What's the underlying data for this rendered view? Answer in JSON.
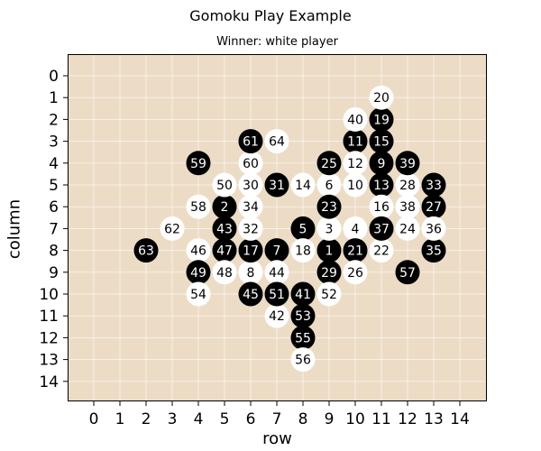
{
  "title": "Gomoku Play Example",
  "subtitle": "Winner: white player",
  "xlabel": "row",
  "ylabel": "column",
  "colors": {
    "board": "#ecdcc6",
    "grid": "#ffffff",
    "black": "#000000",
    "white": "#ffffff"
  },
  "board_size": 15,
  "x_ticks": [
    "0",
    "1",
    "2",
    "3",
    "4",
    "5",
    "6",
    "7",
    "8",
    "9",
    "10",
    "11",
    "12",
    "13",
    "14"
  ],
  "y_ticks": [
    "0",
    "1",
    "2",
    "3",
    "4",
    "5",
    "6",
    "7",
    "8",
    "9",
    "10",
    "11",
    "12",
    "13",
    "14"
  ],
  "moves": [
    {
      "n": 1,
      "color": "black",
      "row": 9,
      "col": 8
    },
    {
      "n": 2,
      "color": "black",
      "row": 5,
      "col": 6
    },
    {
      "n": 3,
      "color": "white",
      "row": 9,
      "col": 7
    },
    {
      "n": 4,
      "color": "white",
      "row": 10,
      "col": 7
    },
    {
      "n": 5,
      "color": "black",
      "row": 8,
      "col": 7
    },
    {
      "n": 6,
      "color": "white",
      "row": 9,
      "col": 5
    },
    {
      "n": 7,
      "color": "black",
      "row": 7,
      "col": 8
    },
    {
      "n": 8,
      "color": "white",
      "row": 6,
      "col": 9
    },
    {
      "n": 9,
      "color": "black",
      "row": 11,
      "col": 4
    },
    {
      "n": 10,
      "color": "white",
      "row": 10,
      "col": 5
    },
    {
      "n": 11,
      "color": "black",
      "row": 10,
      "col": 3
    },
    {
      "n": 12,
      "color": "white",
      "row": 10,
      "col": 4
    },
    {
      "n": 13,
      "color": "black",
      "row": 11,
      "col": 5
    },
    {
      "n": 14,
      "color": "white",
      "row": 8,
      "col": 5
    },
    {
      "n": 15,
      "color": "black",
      "row": 11,
      "col": 3
    },
    {
      "n": 16,
      "color": "white",
      "row": 11,
      "col": 6
    },
    {
      "n": 17,
      "color": "black",
      "row": 6,
      "col": 8
    },
    {
      "n": 18,
      "color": "white",
      "row": 8,
      "col": 8
    },
    {
      "n": 19,
      "color": "black",
      "row": 11,
      "col": 2
    },
    {
      "n": 20,
      "color": "white",
      "row": 11,
      "col": 1
    },
    {
      "n": 21,
      "color": "black",
      "row": 10,
      "col": 8
    },
    {
      "n": 22,
      "color": "white",
      "row": 11,
      "col": 8
    },
    {
      "n": 23,
      "color": "black",
      "row": 9,
      "col": 6
    },
    {
      "n": 24,
      "color": "white",
      "row": 12,
      "col": 7
    },
    {
      "n": 25,
      "color": "black",
      "row": 9,
      "col": 4
    },
    {
      "n": 26,
      "color": "white",
      "row": 10,
      "col": 9
    },
    {
      "n": 27,
      "color": "black",
      "row": 13,
      "col": 6
    },
    {
      "n": 28,
      "color": "white",
      "row": 12,
      "col": 5
    },
    {
      "n": 29,
      "color": "black",
      "row": 9,
      "col": 9
    },
    {
      "n": 30,
      "color": "white",
      "row": 6,
      "col": 5
    },
    {
      "n": 31,
      "color": "black",
      "row": 7,
      "col": 5
    },
    {
      "n": 32,
      "color": "white",
      "row": 6,
      "col": 7
    },
    {
      "n": 33,
      "color": "black",
      "row": 13,
      "col": 5
    },
    {
      "n": 34,
      "color": "white",
      "row": 6,
      "col": 6
    },
    {
      "n": 35,
      "color": "black",
      "row": 13,
      "col": 8
    },
    {
      "n": 36,
      "color": "white",
      "row": 13,
      "col": 7
    },
    {
      "n": 37,
      "color": "black",
      "row": 11,
      "col": 7
    },
    {
      "n": 38,
      "color": "white",
      "row": 12,
      "col": 6
    },
    {
      "n": 39,
      "color": "black",
      "row": 12,
      "col": 4
    },
    {
      "n": 40,
      "color": "white",
      "row": 10,
      "col": 2
    },
    {
      "n": 41,
      "color": "black",
      "row": 8,
      "col": 10
    },
    {
      "n": 42,
      "color": "white",
      "row": 7,
      "col": 11
    },
    {
      "n": 43,
      "color": "black",
      "row": 5,
      "col": 7
    },
    {
      "n": 44,
      "color": "white",
      "row": 7,
      "col": 9
    },
    {
      "n": 45,
      "color": "black",
      "row": 6,
      "col": 10
    },
    {
      "n": 46,
      "color": "white",
      "row": 4,
      "col": 8
    },
    {
      "n": 47,
      "color": "black",
      "row": 5,
      "col": 8
    },
    {
      "n": 48,
      "color": "white",
      "row": 5,
      "col": 9
    },
    {
      "n": 49,
      "color": "black",
      "row": 4,
      "col": 9
    },
    {
      "n": 50,
      "color": "white",
      "row": 5,
      "col": 5
    },
    {
      "n": 51,
      "color": "black",
      "row": 7,
      "col": 10
    },
    {
      "n": 52,
      "color": "white",
      "row": 9,
      "col": 10
    },
    {
      "n": 53,
      "color": "black",
      "row": 8,
      "col": 11
    },
    {
      "n": 54,
      "color": "white",
      "row": 4,
      "col": 10
    },
    {
      "n": 55,
      "color": "black",
      "row": 8,
      "col": 12
    },
    {
      "n": 56,
      "color": "white",
      "row": 8,
      "col": 13
    },
    {
      "n": 57,
      "color": "black",
      "row": 12,
      "col": 9
    },
    {
      "n": 58,
      "color": "white",
      "row": 4,
      "col": 6
    },
    {
      "n": 59,
      "color": "black",
      "row": 4,
      "col": 4
    },
    {
      "n": 60,
      "color": "white",
      "row": 6,
      "col": 4
    },
    {
      "n": 61,
      "color": "black",
      "row": 6,
      "col": 3
    },
    {
      "n": 62,
      "color": "white",
      "row": 3,
      "col": 7
    },
    {
      "n": 63,
      "color": "black",
      "row": 2,
      "col": 8
    },
    {
      "n": 64,
      "color": "white",
      "row": 7,
      "col": 3
    }
  ]
}
